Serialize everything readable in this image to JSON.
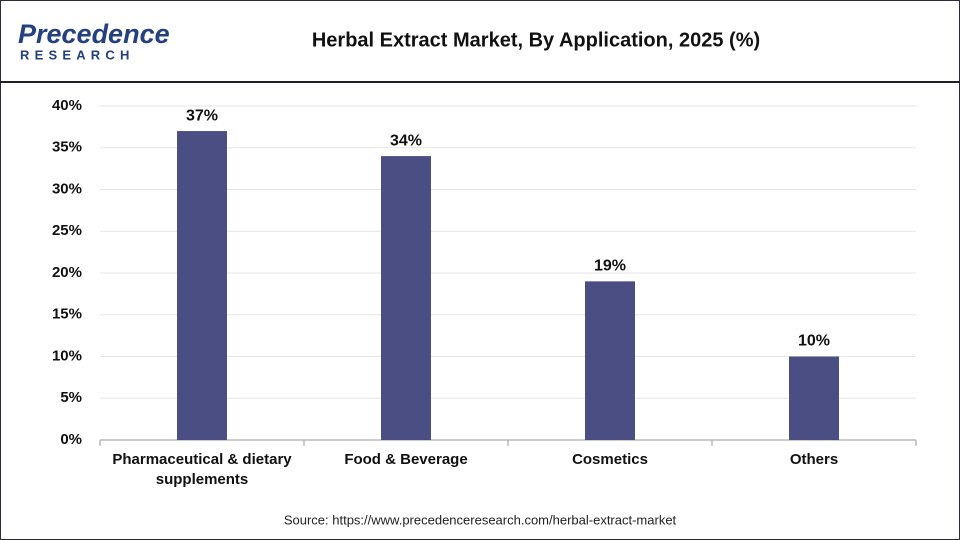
{
  "logo": {
    "name": "Precedence",
    "tagline": "RESEARCH"
  },
  "chart_data": {
    "type": "bar",
    "title": "Herbal Extract Market, By Application, 2025 (%)",
    "categories": [
      "Pharmaceutical & dietary supplements",
      "Food & Beverage",
      "Cosmetics",
      "Others"
    ],
    "values": [
      37,
      34,
      19,
      10
    ],
    "value_labels": [
      "37%",
      "34%",
      "19%",
      "10%"
    ],
    "color": "#4a4e83",
    "ylim": [
      0,
      40
    ],
    "yticks": [
      {
        "value": 0,
        "label": "0%"
      },
      {
        "value": 5,
        "label": "5%"
      },
      {
        "value": 10,
        "label": "10%"
      },
      {
        "value": 15,
        "label": "15%"
      },
      {
        "value": 20,
        "label": "20%"
      },
      {
        "value": 25,
        "label": "25%"
      },
      {
        "value": 30,
        "label": "30%"
      },
      {
        "value": 35,
        "label": "35%"
      },
      {
        "value": 40,
        "label": "40%"
      }
    ],
    "grid": true,
    "source": "Source: https://www.precedenceresearch.com/herbal-extract-market"
  }
}
